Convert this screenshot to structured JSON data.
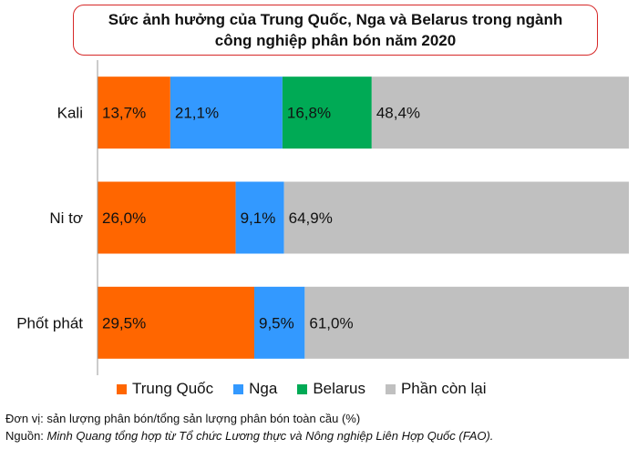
{
  "title_line1": "Sức ảnh hưởng của Trung Quốc, Nga và Belarus trong ngành",
  "title_line2": "công nghiệp phân bón năm 2020",
  "footnote": {
    "unit": "Đơn vị: sản lượng phân bón/tổng sản lượng phân bón toàn cầu (%)",
    "source_label": "Nguồn:",
    "source_text": "Minh Quang tổng hợp từ Tổ chức Lương thực và Nông nghiệp Liên Hợp Quốc (FAO)."
  },
  "chart_data": {
    "type": "bar",
    "orientation": "horizontal",
    "stacked": true,
    "categories": [
      "Kali",
      "Ni tơ",
      "Phốt phát"
    ],
    "series": [
      {
        "name": "Trung Quốc",
        "color": "#ff6600",
        "values": [
          13.7,
          26.0,
          29.5
        ],
        "labels": [
          "13,7%",
          "26,0%",
          "29,5%"
        ]
      },
      {
        "name": "Nga",
        "color": "#3399ff",
        "values": [
          21.1,
          9.1,
          9.5
        ],
        "labels": [
          "21,1%",
          "9,1%",
          "9,5%"
        ]
      },
      {
        "name": "Belarus",
        "color": "#00aa55",
        "values": [
          16.8,
          0,
          0
        ],
        "labels": [
          "16,8%",
          "",
          ""
        ]
      },
      {
        "name": "Phần còn lại",
        "color": "#c0c0c0",
        "values": [
          48.4,
          64.9,
          61.0
        ],
        "labels": [
          "48,4%",
          "64,9%",
          "61,0%"
        ]
      }
    ],
    "xlim": [
      0,
      100
    ],
    "grid": false,
    "legend_position": "bottom"
  }
}
